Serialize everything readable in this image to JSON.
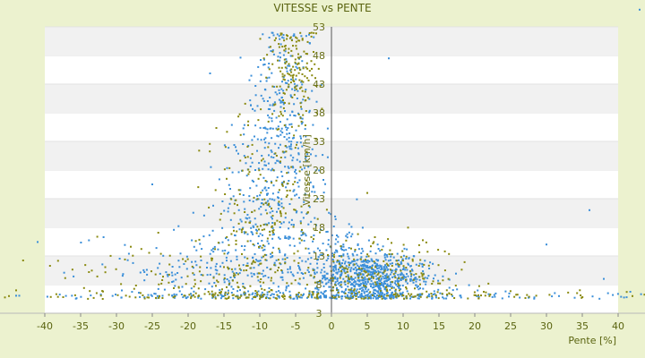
{
  "chart_data": {
    "type": "scatter",
    "title": "VITESSE vs PENTE",
    "xlabel": "Pente [%]",
    "ylabel": "Vitesse [km/h]",
    "xlim": [
      -40,
      43
    ],
    "ylim": [
      3,
      53
    ],
    "xticks": [
      -40,
      -35,
      -30,
      -25,
      -20,
      -15,
      -10,
      -5,
      0,
      5,
      10,
      15,
      20,
      25,
      30,
      35,
      40
    ],
    "yticks": [
      3,
      8,
      13,
      18,
      23,
      28,
      33,
      38,
      43,
      48,
      53
    ],
    "grid": "horizontal alternating bands",
    "series": [
      {
        "color": "#3b8fd9"
      },
      {
        "color": "#8a8a10"
      }
    ],
    "clusters": [
      {
        "series": 0,
        "cx": -6.5,
        "cy": 40,
        "sx": 2.0,
        "sy": 8,
        "n": 220
      },
      {
        "series": 0,
        "cx": -9,
        "cy": 22,
        "sx": 3.5,
        "sy": 9,
        "n": 300
      },
      {
        "series": 0,
        "cx": -14,
        "cy": 11,
        "sx": 8,
        "sy": 4,
        "n": 250
      },
      {
        "series": 0,
        "cx": 6,
        "cy": 9,
        "sx": 4,
        "sy": 2.2,
        "n": 650
      },
      {
        "series": 0,
        "cx": 1,
        "cy": 11,
        "sx": 2.5,
        "sy": 4,
        "n": 150
      },
      {
        "series": 0,
        "cx": 0,
        "cy": 6,
        "sx": 22,
        "sy": 0.5,
        "n": 200
      },
      {
        "series": 1,
        "cx": -5.5,
        "cy": 45,
        "sx": 1.8,
        "sy": 5,
        "n": 160
      },
      {
        "series": 1,
        "cx": -9,
        "cy": 20,
        "sx": 4,
        "sy": 9,
        "n": 220
      },
      {
        "series": 1,
        "cx": -18,
        "cy": 9,
        "sx": 9,
        "sy": 3.5,
        "n": 150
      },
      {
        "series": 1,
        "cx": 7,
        "cy": 10,
        "sx": 5,
        "sy": 3,
        "n": 200
      },
      {
        "series": 1,
        "cx": 2,
        "cy": 6,
        "sx": 22,
        "sy": 0.6,
        "n": 120
      }
    ],
    "outliers": [
      {
        "series": 0,
        "x": 8,
        "y": 47.5
      },
      {
        "series": 0,
        "x": -25,
        "y": 25.5
      },
      {
        "series": 0,
        "x": 36,
        "y": 21
      },
      {
        "series": 0,
        "x": 30,
        "y": 15
      },
      {
        "series": 0,
        "x": 38,
        "y": 9
      },
      {
        "series": 0,
        "x": 43,
        "y": 56
      },
      {
        "series": 1,
        "x": -44,
        "y": 7
      },
      {
        "series": 1,
        "x": -45,
        "y": 6
      },
      {
        "series": 1,
        "x": -47,
        "y": 7.5
      },
      {
        "series": 1,
        "x": 42,
        "y": 6
      },
      {
        "series": 1,
        "x": 5,
        "y": 24
      }
    ]
  }
}
